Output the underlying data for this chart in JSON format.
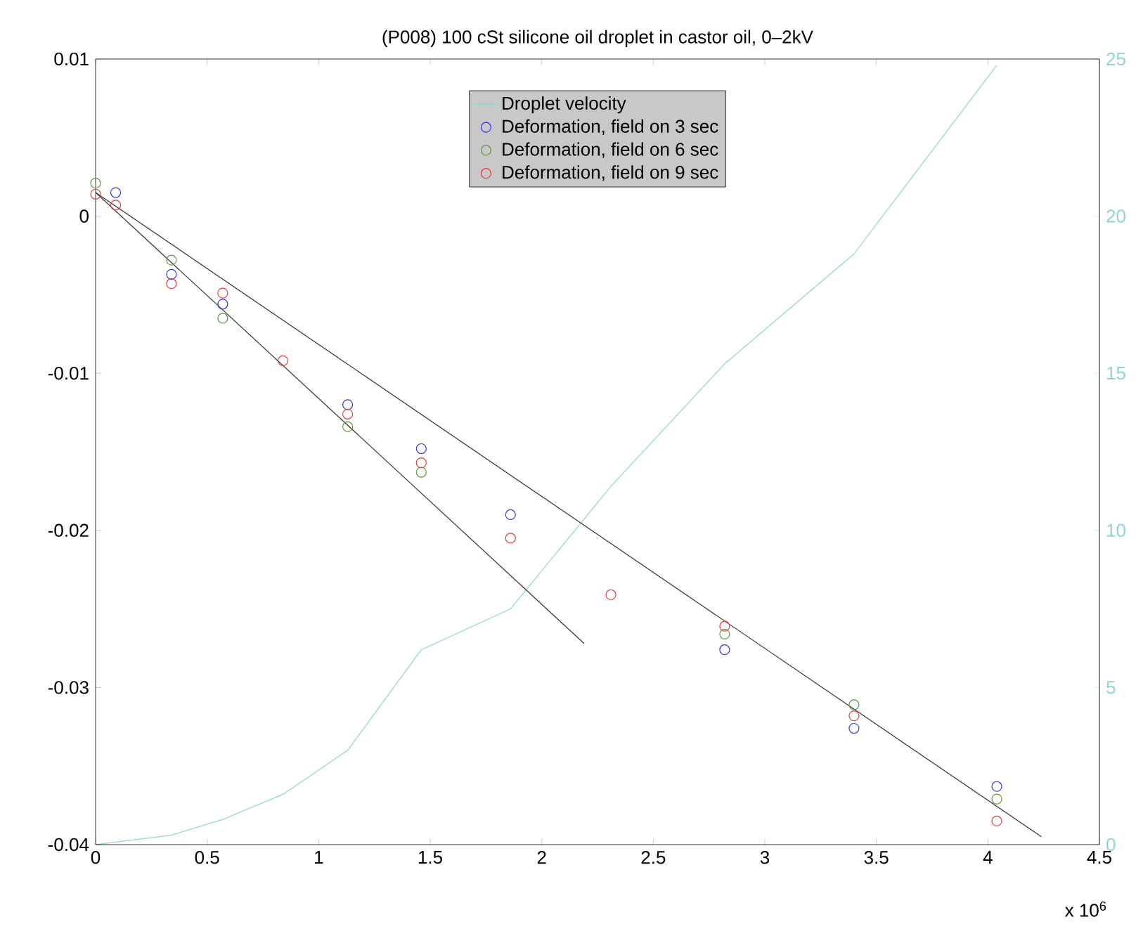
{
  "chart_data": {
    "type": "scatter",
    "title": "(P008) 100 cSt silicone oil droplet in castor oil, 0–2kV",
    "xlim": [
      0,
      4.5
    ],
    "xticks": [
      0,
      0.5,
      1,
      1.5,
      2,
      2.5,
      3,
      3.5,
      4,
      4.5
    ],
    "ylim": [
      -0.04,
      0.01
    ],
    "yticks": [
      -0.04,
      -0.03,
      -0.02,
      -0.01,
      0,
      0.01
    ],
    "y2lim": [
      0,
      25
    ],
    "y2ticks": [
      0,
      5,
      10,
      15,
      20,
      25
    ],
    "legend": "top",
    "annotations": [
      "x 10$^{6}$"
    ],
    "series": [
      {
        "name": "Droplet velocity",
        "type": "line",
        "axis": "y2",
        "color": "#8fd3d3",
        "marker": "none",
        "x": [
          0,
          0.34,
          0.57,
          0.84,
          1.13,
          1.46,
          1.86,
          2.31,
          2.82,
          3.4,
          4.04
        ],
        "values": [
          0,
          0.3,
          0.8,
          1.6,
          3.0,
          6.2,
          7.5,
          11.4,
          15.3,
          18.8,
          24.8
        ]
      },
      {
        "name": "Deformation, field on 3 sec",
        "color": "#3333ee",
        "marker": "circle",
        "x": [
          0.09,
          0.34,
          0.57,
          0.84,
          1.13,
          1.46,
          1.86,
          2.31,
          2.82,
          3.4,
          4.04
        ],
        "values": [
          0.0015,
          -0.0037,
          -0.0056,
          null,
          -0.012,
          -0.0148,
          -0.019,
          null,
          -0.0276,
          -0.0326,
          -0.0363
        ]
      },
      {
        "name": "Deformation, field on 6 sec",
        "color": "#5a9a3a",
        "marker": "circle",
        "x": [
          0,
          0.09,
          0.34,
          0.57,
          0.84,
          1.13,
          1.46,
          1.86,
          2.31,
          2.82,
          3.4,
          4.04
        ],
        "values": [
          0.0021,
          null,
          -0.0028,
          -0.0065,
          null,
          -0.0134,
          -0.0163,
          null,
          null,
          -0.0266,
          -0.0311,
          -0.0371
        ]
      },
      {
        "name": "Deformation, field on 9 sec",
        "color": "#e83a3a",
        "marker": "circle",
        "x": [
          0,
          0.09,
          0.34,
          0.57,
          0.84,
          1.13,
          1.46,
          1.86,
          2.31,
          2.82,
          3.4,
          4.04
        ],
        "values": [
          0.0014,
          0.0007,
          -0.0043,
          -0.0049,
          -0.0092,
          -0.0126,
          -0.0157,
          -0.0205,
          -0.0241,
          -0.0261,
          -0.0318,
          -0.0385
        ]
      },
      {
        "type": "line",
        "color": "#333333",
        "marker": "none",
        "x": [
          0,
          2.19
        ],
        "values": [
          0.0015,
          -0.0272
        ]
      },
      {
        "type": "line",
        "color": "#333333",
        "marker": "none",
        "x": [
          0,
          4.24
        ],
        "values": [
          0.0015,
          -0.0395
        ]
      }
    ]
  }
}
